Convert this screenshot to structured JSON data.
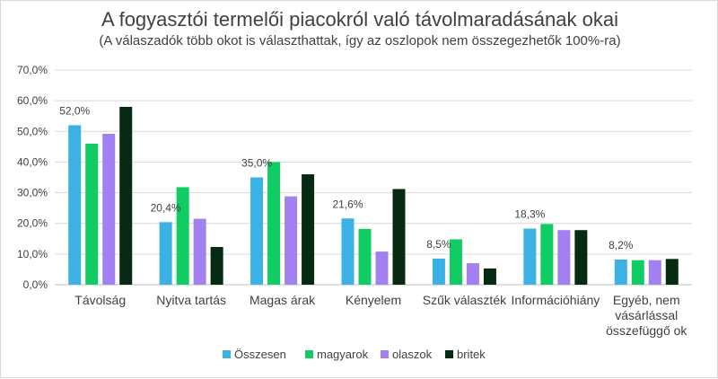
{
  "chart_data": {
    "type": "bar",
    "title": "A fogyasztói termelői piacokról való távolmaradásának okai",
    "subtitle": "(A válaszadók több okot is választhattak, így az oszlopok nem összegezhetők 100%-ra)",
    "categories": [
      [
        "Távolság"
      ],
      [
        "Nyitva tartás"
      ],
      [
        "Magas árak"
      ],
      [
        "Kényelem"
      ],
      [
        "Szűk választék"
      ],
      [
        "Információhiány"
      ],
      [
        "Egyéb, nem",
        "vásárlással",
        "összefüggő ok"
      ]
    ],
    "series": [
      {
        "name": "Összesen",
        "color": "#3bb1e4",
        "values": [
          52.0,
          20.4,
          35.0,
          21.6,
          8.5,
          18.3,
          8.2
        ]
      },
      {
        "name": "magyarok",
        "color": "#11cc62",
        "values": [
          46.0,
          31.8,
          40.0,
          18.2,
          14.8,
          19.8,
          8.0
        ]
      },
      {
        "name": "olaszok",
        "color": "#a280f0",
        "values": [
          49.2,
          21.5,
          28.8,
          10.8,
          7.0,
          17.8,
          8.0
        ]
      },
      {
        "name": "britek",
        "color": "#062a12",
        "values": [
          58.0,
          12.3,
          36.0,
          31.2,
          5.3,
          17.8,
          8.4
        ]
      }
    ],
    "data_labels": [
      "52,0%",
      "20,4%",
      "35,0%",
      "21,6%",
      "8,5%",
      "18,3%",
      "8,2%"
    ],
    "ylim": [
      0,
      70
    ],
    "yticks": [
      "0,0%",
      "10,0%",
      "20,0%",
      "30,0%",
      "40,0%",
      "50,0%",
      "60,0%",
      "70,0%"
    ],
    "grid": true,
    "legend_position": "bottom"
  }
}
